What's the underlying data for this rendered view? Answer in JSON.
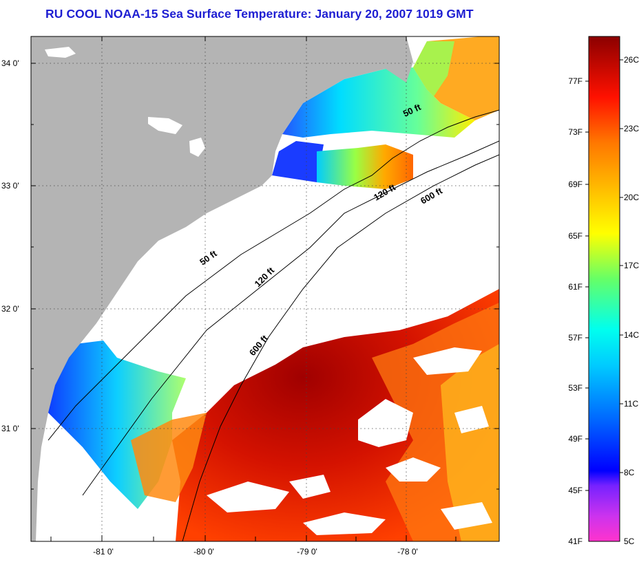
{
  "title": "RU COOL  NOAA-15  Sea Surface Temperature:  January 20, 2007 1019 GMT",
  "map": {
    "lat_labels": [
      "34 0'",
      "33 0'",
      "32 0'",
      "31 0'"
    ],
    "lon_labels": [
      "-81 0'",
      "-80 0'",
      "-79 0'",
      "-78 0'"
    ],
    "contour_labels": [
      "50 ft",
      "120 ft",
      "600 ft",
      "50 ft",
      "120 ft",
      "600 ft"
    ],
    "land_color": "#b4b4b4",
    "no_data_color": "#ffffff"
  },
  "colorbar": {
    "fahrenheit_labels": [
      "77F",
      "73F",
      "69F",
      "65F",
      "61F",
      "57F",
      "53F",
      "49F",
      "45F",
      "41F"
    ],
    "celsius_labels": [
      "26C",
      "23C",
      "20C",
      "17C",
      "14C",
      "11C",
      "8C",
      "5C"
    ],
    "colors": [
      "#ff33cc",
      "#9933ff",
      "#0000ff",
      "#0088ff",
      "#00ffff",
      "#66ff66",
      "#ffff00",
      "#ff9900",
      "#ff2200",
      "#990000"
    ]
  }
}
